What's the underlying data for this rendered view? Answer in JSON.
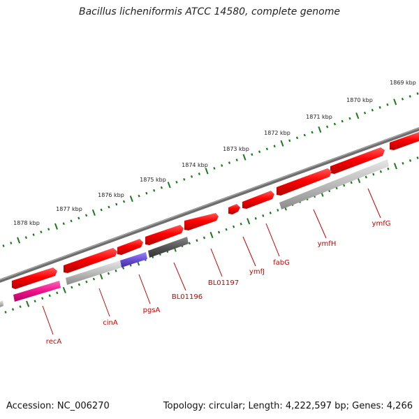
{
  "title": "Bacillus licheniformis ATCC 14580, complete genome",
  "footer": {
    "accession": "Accession: NC_006270",
    "summary": "Topology: circular; Length: 4,222,597 bp; Genes: 4,266"
  },
  "colors": {
    "backbone": "#7a7a7a",
    "tick": "#1a7a1a",
    "label": "#cc0000",
    "tick_label": "#222222",
    "cds": "#ff0000",
    "rrna_like": "#ee1188",
    "pseudo": "#bbbbbb",
    "other": "#6a4fd6",
    "dark": "#555555"
  },
  "outer_scale_labels": [
    "1869 kbp",
    "1870 kbp",
    "1871 kbp",
    "1872 kbp",
    "1873 kbp",
    "1874 kbp",
    "1875 kbp",
    "1876 kbp",
    "1877 kbp",
    "1878 kbp"
  ],
  "gene_labels": [
    "ymfG",
    "ymfH",
    "fabG",
    "ymfJ",
    "BL01197",
    "BL01196",
    "pgsA",
    "cinA",
    "recA"
  ]
}
